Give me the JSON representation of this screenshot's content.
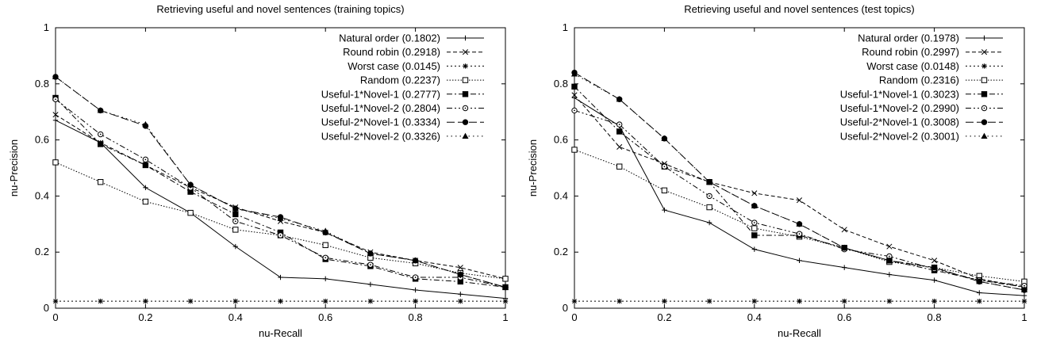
{
  "chart_data": [
    {
      "type": "line",
      "title": "Retrieving useful and novel sentences (training topics)",
      "xlabel": "nu-Recall",
      "ylabel": "nu-Precision",
      "xlim": [
        0,
        1
      ],
      "ylim": [
        0,
        1
      ],
      "x": [
        0,
        0.1,
        0.2,
        0.3,
        0.4,
        0.5,
        0.6,
        0.7,
        0.8,
        0.9,
        1
      ],
      "xticks": [
        "0",
        "0.2",
        "0.4",
        "0.6",
        "0.8",
        "1"
      ],
      "yticks": [
        "0",
        "0.2",
        "0.4",
        "0.6",
        "0.8",
        "1"
      ],
      "grid": false,
      "legend_position": "top-right",
      "series": [
        {
          "name": "Natural order (0.1802)",
          "marker": "plus",
          "dash": "solid",
          "values": [
            0.67,
            0.59,
            0.43,
            0.34,
            0.22,
            0.11,
            0.105,
            0.085,
            0.065,
            0.05,
            0.035
          ]
        },
        {
          "name": "Round robin (0.2918)",
          "marker": "cross",
          "dash": "dashed",
          "values": [
            0.69,
            0.59,
            0.51,
            0.43,
            0.36,
            0.31,
            0.27,
            0.2,
            0.17,
            0.145,
            0.105
          ]
        },
        {
          "name": "Worst case (0.0145)",
          "marker": "star",
          "dash": "dotted",
          "values": [
            0.025,
            0.025,
            0.025,
            0.025,
            0.025,
            0.025,
            0.025,
            0.025,
            0.025,
            0.025,
            0.025
          ]
        },
        {
          "name": "Random (0.2237)",
          "marker": "open-square",
          "dash": "fine-dotted",
          "values": [
            0.52,
            0.45,
            0.38,
            0.34,
            0.28,
            0.26,
            0.225,
            0.18,
            0.16,
            0.125,
            0.105
          ]
        },
        {
          "name": "Useful-1*Novel-1 (0.2777)",
          "marker": "filled-square",
          "dash": "dash-dot",
          "values": [
            0.75,
            0.585,
            0.51,
            0.415,
            0.335,
            0.27,
            0.175,
            0.15,
            0.105,
            0.095,
            0.075
          ]
        },
        {
          "name": "Useful-1*Novel-2 (0.2804)",
          "marker": "open-circle",
          "dash": "dash-dot-dot",
          "values": [
            0.745,
            0.62,
            0.53,
            0.43,
            0.31,
            0.26,
            0.18,
            0.155,
            0.11,
            0.11,
            0.075
          ]
        },
        {
          "name": "Useful-2*Novel-1 (0.3334)",
          "marker": "filled-circle",
          "dash": "long-dash",
          "values": [
            0.825,
            0.705,
            0.65,
            0.44,
            0.355,
            0.325,
            0.27,
            0.195,
            0.17,
            0.12,
            0.075
          ]
        },
        {
          "name": "Useful-2*Novel-2 (0.3326)",
          "marker": "triangle",
          "dash": "loose-dotted",
          "values": [
            0.825,
            0.705,
            0.655,
            0.44,
            0.355,
            0.32,
            0.275,
            0.195,
            0.17,
            0.12,
            0.075
          ]
        }
      ]
    },
    {
      "type": "line",
      "title": "Retrieving useful and novel sentences (test topics)",
      "xlabel": "nu-Recall",
      "ylabel": "nu-Precision",
      "xlim": [
        0,
        1
      ],
      "ylim": [
        0,
        1
      ],
      "x": [
        0,
        0.1,
        0.2,
        0.3,
        0.4,
        0.5,
        0.6,
        0.7,
        0.8,
        0.9,
        1
      ],
      "xticks": [
        "0",
        "0.2",
        "0.4",
        "0.6",
        "0.8",
        "1"
      ],
      "yticks": [
        "0",
        "0.2",
        "0.4",
        "0.6",
        "0.8",
        "1"
      ],
      "grid": false,
      "legend_position": "top-right",
      "series": [
        {
          "name": "Natural order (0.1978)",
          "marker": "plus",
          "dash": "solid",
          "values": [
            0.75,
            0.65,
            0.35,
            0.305,
            0.21,
            0.17,
            0.145,
            0.12,
            0.1,
            0.055,
            0.045
          ]
        },
        {
          "name": "Round robin (0.2997)",
          "marker": "cross",
          "dash": "dashed",
          "values": [
            0.76,
            0.575,
            0.515,
            0.45,
            0.41,
            0.385,
            0.28,
            0.22,
            0.17,
            0.105,
            0.075
          ]
        },
        {
          "name": "Worst case (0.0148)",
          "marker": "star",
          "dash": "dotted",
          "values": [
            0.025,
            0.025,
            0.025,
            0.025,
            0.025,
            0.025,
            0.025,
            0.025,
            0.025,
            0.025,
            0.025
          ]
        },
        {
          "name": "Random (0.2316)",
          "marker": "open-square",
          "dash": "fine-dotted",
          "values": [
            0.565,
            0.505,
            0.42,
            0.36,
            0.285,
            0.255,
            0.215,
            0.165,
            0.145,
            0.115,
            0.095
          ]
        },
        {
          "name": "Useful-1*Novel-1 (0.3023)",
          "marker": "filled-square",
          "dash": "dash-dot",
          "values": [
            0.79,
            0.63,
            0.505,
            0.45,
            0.26,
            0.26,
            0.215,
            0.17,
            0.135,
            0.1,
            0.075
          ]
        },
        {
          "name": "Useful-1*Novel-2 (0.2990)",
          "marker": "open-circle",
          "dash": "dash-dot-dot",
          "values": [
            0.705,
            0.655,
            0.505,
            0.4,
            0.305,
            0.265,
            0.21,
            0.185,
            0.14,
            0.1,
            0.08
          ]
        },
        {
          "name": "Useful-2*Novel-1 (0.3008)",
          "marker": "filled-circle",
          "dash": "long-dash",
          "values": [
            0.84,
            0.745,
            0.605,
            0.45,
            0.365,
            0.3,
            0.215,
            0.17,
            0.145,
            0.095,
            0.065
          ]
        },
        {
          "name": "Useful-2*Novel-2 (0.3001)",
          "marker": "triangle",
          "dash": "loose-dotted",
          "values": [
            0.835,
            0.745,
            0.605,
            0.45,
            0.365,
            0.3,
            0.215,
            0.17,
            0.145,
            0.095,
            0.065
          ]
        }
      ]
    }
  ]
}
